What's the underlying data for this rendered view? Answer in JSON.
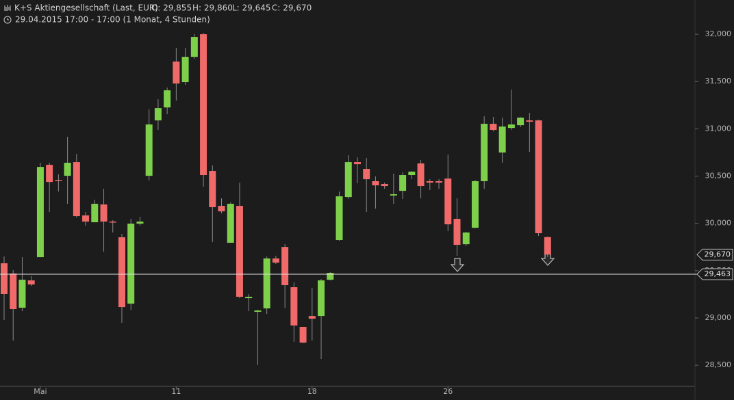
{
  "chart_data": {
    "type": "candlestick",
    "title": "K+S Aktiengesellschaft (Last, EUR)",
    "ohlc_text": [
      "O: 29,855",
      "H: 29,860",
      "L: 29,645",
      "C: 29,670"
    ],
    "subtitle": "29.04.2015 17:00 - 17:00 (1 Monat, 4 Stunden)",
    "categories": [
      null,
      null,
      null,
      null,
      "Mai",
      null,
      null,
      null,
      null,
      null,
      null,
      null,
      null,
      null,
      null,
      null,
      null,
      null,
      null,
      "11",
      null,
      null,
      null,
      null,
      null,
      null,
      null,
      null,
      null,
      null,
      null,
      null,
      null,
      null,
      "18",
      null,
      null,
      null,
      null,
      null,
      null,
      null,
      null,
      null,
      null,
      null,
      null,
      null,
      null,
      "26",
      null,
      null,
      null,
      null,
      null,
      null,
      null,
      null,
      null,
      null,
      null
    ],
    "up_color": "#7ed04b",
    "down_color": "#f06a6a",
    "open": [
      29.578,
      29.47,
      29.108,
      29.397,
      29.643,
      30.619,
      30.46,
      30.503,
      30.648,
      30.084,
      30.012,
      30.2,
      30.019,
      29.853,
      29.151,
      29.997,
      30.503,
      31.089,
      31.226,
      31.711,
      31.494,
      31.761,
      32.0,
      30.554,
      30.185,
      29.795,
      30.185,
      29.209,
      29.065,
      29.101,
      29.629,
      29.751,
      29.325,
      28.906,
      29.021,
      29.021,
      29.404,
      29.824,
      30.279,
      30.648,
      30.576,
      30.446,
      30.417,
      30.294,
      30.344,
      30.511,
      30.634,
      30.446,
      30.446,
      30.474,
      30.048,
      29.78,
      29.954,
      30.446,
      31.053,
      30.749,
      31.009,
      31.038,
      31.089,
      31.089,
      29.855
    ],
    "high": [
      29.65,
      29.506,
      29.643,
      29.441,
      30.641,
      30.641,
      30.518,
      30.916,
      30.735,
      30.12,
      30.25,
      30.366,
      30.033,
      29.889,
      30.048,
      30.07,
      31.205,
      31.313,
      31.436,
      31.855,
      31.855,
      32.0,
      32.014,
      30.612,
      30.265,
      30.221,
      30.431,
      29.253,
      29.086,
      29.65,
      29.657,
      29.78,
      29.376,
      28.906,
      29.318,
      29.412,
      29.484,
      30.337,
      30.72,
      30.699,
      30.691,
      30.496,
      30.431,
      30.525,
      30.54,
      30.554,
      30.67,
      30.467,
      30.467,
      30.728,
      30.265,
      29.911,
      30.46,
      31.132,
      31.125,
      31.118,
      31.414,
      31.125,
      31.169,
      31.096,
      29.86
    ],
    "low": [
      28.978,
      28.761,
      29.072,
      29.339,
      29.643,
      30.12,
      30.337,
      30.207,
      30.062,
      29.976,
      30.012,
      29.701,
      29.903,
      28.949,
      29.086,
      29.976,
      30.453,
      30.988,
      31.154,
      31.299,
      31.465,
      31.74,
      30.388,
      29.802,
      30.106,
      29.795,
      29.209,
      29.072,
      28.501,
      29.043,
      29.571,
      29.108,
      28.747,
      28.732,
      28.761,
      28.566,
      29.397,
      29.817,
      30.258,
      30.424,
      30.12,
      30.156,
      30.366,
      30.207,
      30.258,
      30.467,
      30.265,
      30.352,
      30.366,
      29.918,
      29.657,
      29.759,
      29.947,
      30.366,
      30.973,
      30.641,
      30.988,
      31.017,
      30.756,
      29.867,
      29.645
    ],
    "close": [
      29.253,
      29.094,
      29.404,
      29.354,
      30.597,
      30.438,
      30.453,
      30.641,
      30.077,
      30.019,
      30.207,
      30.019,
      30.012,
      29.115,
      29.997,
      30.019,
      31.046,
      31.219,
      31.407,
      31.479,
      31.761,
      31.971,
      30.511,
      30.171,
      30.127,
      30.207,
      29.224,
      29.224,
      29.079,
      29.629,
      29.585,
      29.347,
      28.92,
      28.739,
      28.992,
      29.397,
      29.477,
      30.286,
      30.648,
      30.626,
      30.467,
      30.402,
      30.395,
      30.308,
      30.511,
      30.547,
      30.395,
      30.431,
      30.431,
      29.99,
      29.773,
      29.903,
      30.446,
      31.053,
      30.988,
      31.024,
      31.046,
      31.118,
      31.075,
      29.896,
      29.67
    ],
    "ylim": [
      28.277,
      32.362
    ],
    "yticks": [
      {
        "value": 28.5,
        "label": "28,500"
      },
      {
        "value": 29,
        "label": "29,000"
      },
      {
        "value": 29.5,
        "label": "29,500"
      },
      {
        "value": 30,
        "label": "30,000"
      },
      {
        "value": 30.5,
        "label": "30,500"
      },
      {
        "value": 31,
        "label": "31,000"
      },
      {
        "value": 31.5,
        "label": "31,500"
      },
      {
        "value": 32,
        "label": "32,000"
      }
    ],
    "last_price": {
      "value": 29.67,
      "label": "29,670"
    },
    "hline": {
      "value": 29.463,
      "label": "29,463"
    }
  }
}
